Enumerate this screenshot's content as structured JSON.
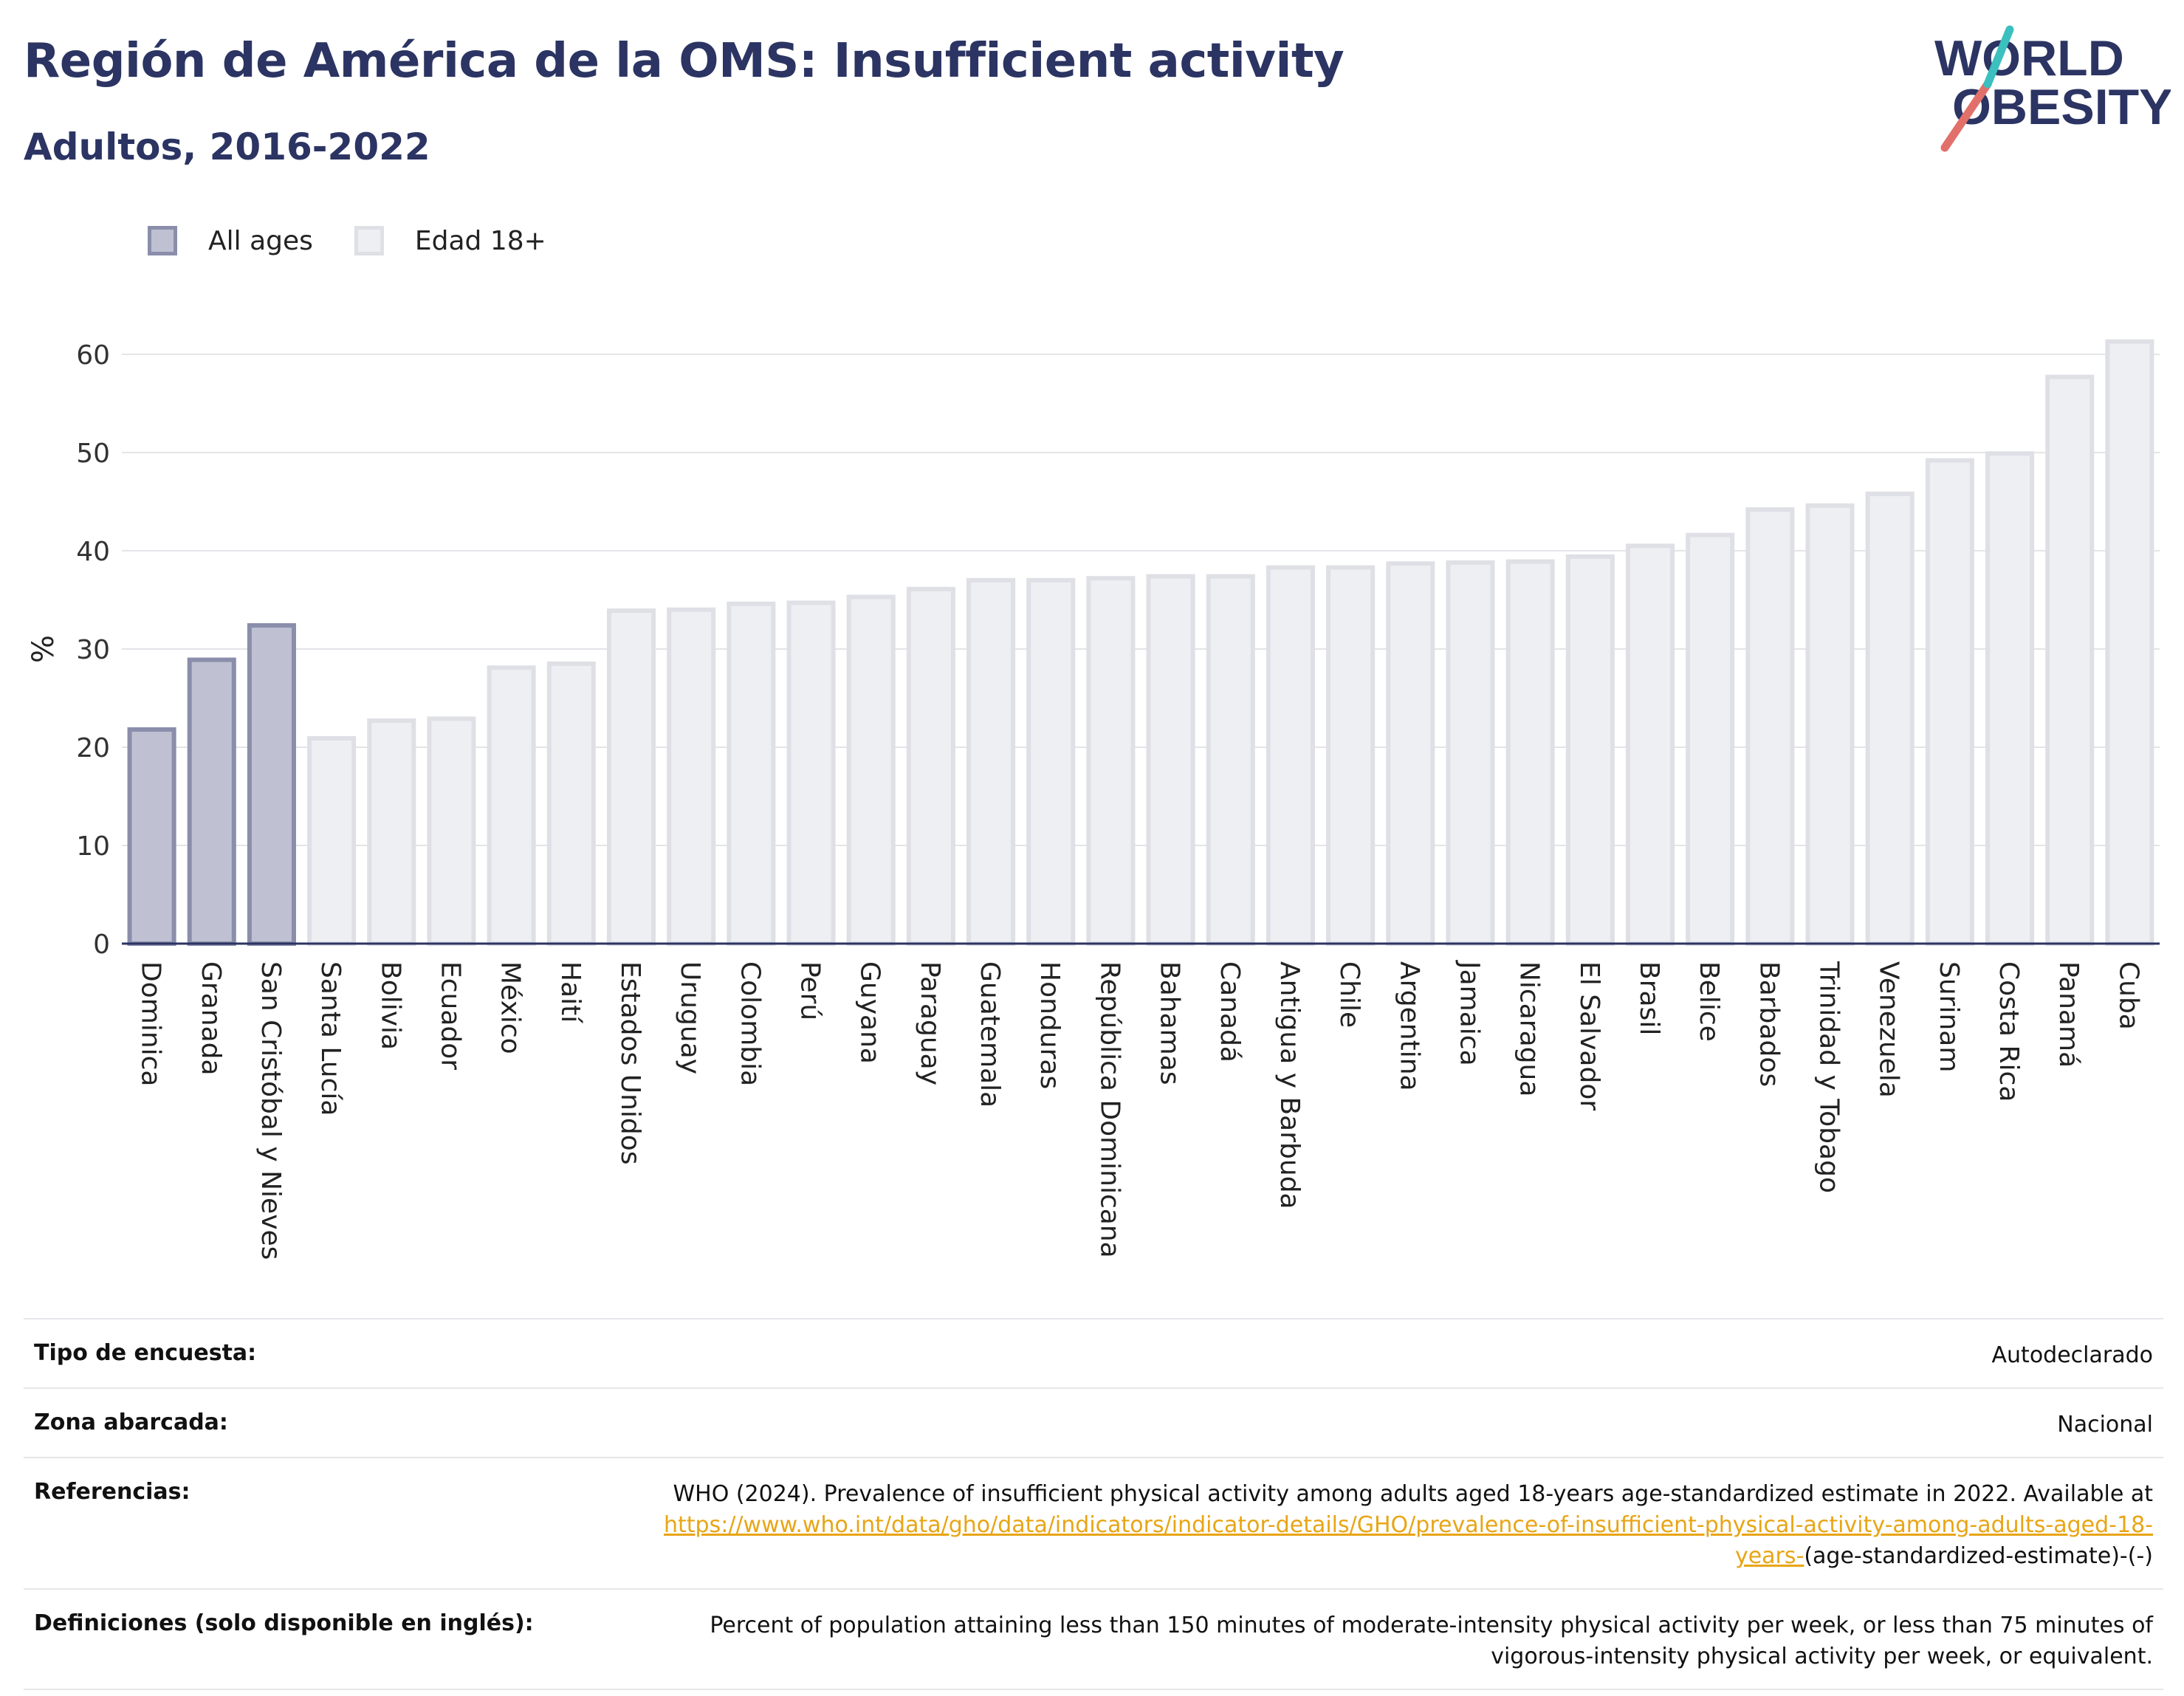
{
  "header": {
    "title": "Región de América de la OMS: Insufficient activity",
    "subtitle": "Adultos, 2016-2022"
  },
  "logo": {
    "line1": "WORLD",
    "line2": "OBESITY",
    "colors": {
      "text": "#2b3462",
      "slash_red": "#e2706a",
      "slash_teal": "#3bbfbf"
    }
  },
  "legend": {
    "items": [
      {
        "label": "All ages",
        "color": "#bfc1d3",
        "border": "#8a8eab"
      },
      {
        "label": "Edad 18+",
        "color": "#eeeff3",
        "border": "#dfe0e6"
      }
    ]
  },
  "chart_data": {
    "type": "bar",
    "ylabel": "%",
    "xlabel": "",
    "ylim": [
      0,
      63
    ],
    "yticks": [
      0,
      10,
      20,
      30,
      40,
      50,
      60
    ],
    "grid": true,
    "legend_position": "top-left",
    "categories": [
      "Dominica",
      "Granada",
      "San Cristóbal y Nieves",
      "Santa Lucía",
      "Bolivia",
      "Ecuador",
      "México",
      "Haití",
      "Estados Unidos",
      "Uruguay",
      "Colombia",
      "Perú",
      "Guyana",
      "Paraguay",
      "Guatemala",
      "Honduras",
      "República Dominicana",
      "Bahamas",
      "Canadá",
      "Antigua y Barbuda",
      "Chile",
      "Argentina",
      "Jamaica",
      "Nicaragua",
      "El Salvador",
      "Brasil",
      "Belice",
      "Barbados",
      "Trinidad y Tobago",
      "Venezuela",
      "Surinam",
      "Costa Rica",
      "Panamá",
      "Cuba"
    ],
    "values": [
      21.8,
      28.9,
      32.4,
      20.9,
      22.7,
      22.9,
      28.1,
      28.5,
      33.9,
      34.0,
      34.6,
      34.7,
      35.3,
      36.1,
      37.0,
      37.0,
      37.2,
      37.4,
      37.4,
      38.3,
      38.3,
      38.7,
      38.8,
      38.9,
      39.4,
      40.5,
      41.6,
      44.2,
      44.6,
      45.8,
      49.2,
      49.9,
      57.7,
      61.3
    ],
    "series_group": [
      "All ages",
      "All ages",
      "All ages",
      "Edad 18+",
      "Edad 18+",
      "Edad 18+",
      "Edad 18+",
      "Edad 18+",
      "Edad 18+",
      "Edad 18+",
      "Edad 18+",
      "Edad 18+",
      "Edad 18+",
      "Edad 18+",
      "Edad 18+",
      "Edad 18+",
      "Edad 18+",
      "Edad 18+",
      "Edad 18+",
      "Edad 18+",
      "Edad 18+",
      "Edad 18+",
      "Edad 18+",
      "Edad 18+",
      "Edad 18+",
      "Edad 18+",
      "Edad 18+",
      "Edad 18+",
      "Edad 18+",
      "Edad 18+",
      "Edad 18+",
      "Edad 18+",
      "Edad 18+",
      "Edad 18+"
    ]
  },
  "info": {
    "rows": [
      {
        "label": "Tipo de encuesta:",
        "value": "Autodeclarado"
      },
      {
        "label": "Zona abarcada:",
        "value": "Nacional"
      },
      {
        "label": "Referencias:",
        "value_pre": "WHO (2024). Prevalence of insufficient physical activity among adults aged 18-years age-standardized estimate in 2022. Available at",
        "value_link": "https://www.who.int/data/gho/data/indicators/indicator-details/GHO/prevalence-of-insufficient-physical-activity-among-adults-aged-18-years-",
        "value_post": "(age-standardized-estimate)-(-)"
      },
      {
        "label": "Definiciones (solo disponible en inglés):",
        "value": "Percent of population attaining less than 150 minutes of moderate-intensity physical activity per week, or less than 75 minutes of vigorous-intensity physical activity per week, or equivalent."
      }
    ]
  }
}
